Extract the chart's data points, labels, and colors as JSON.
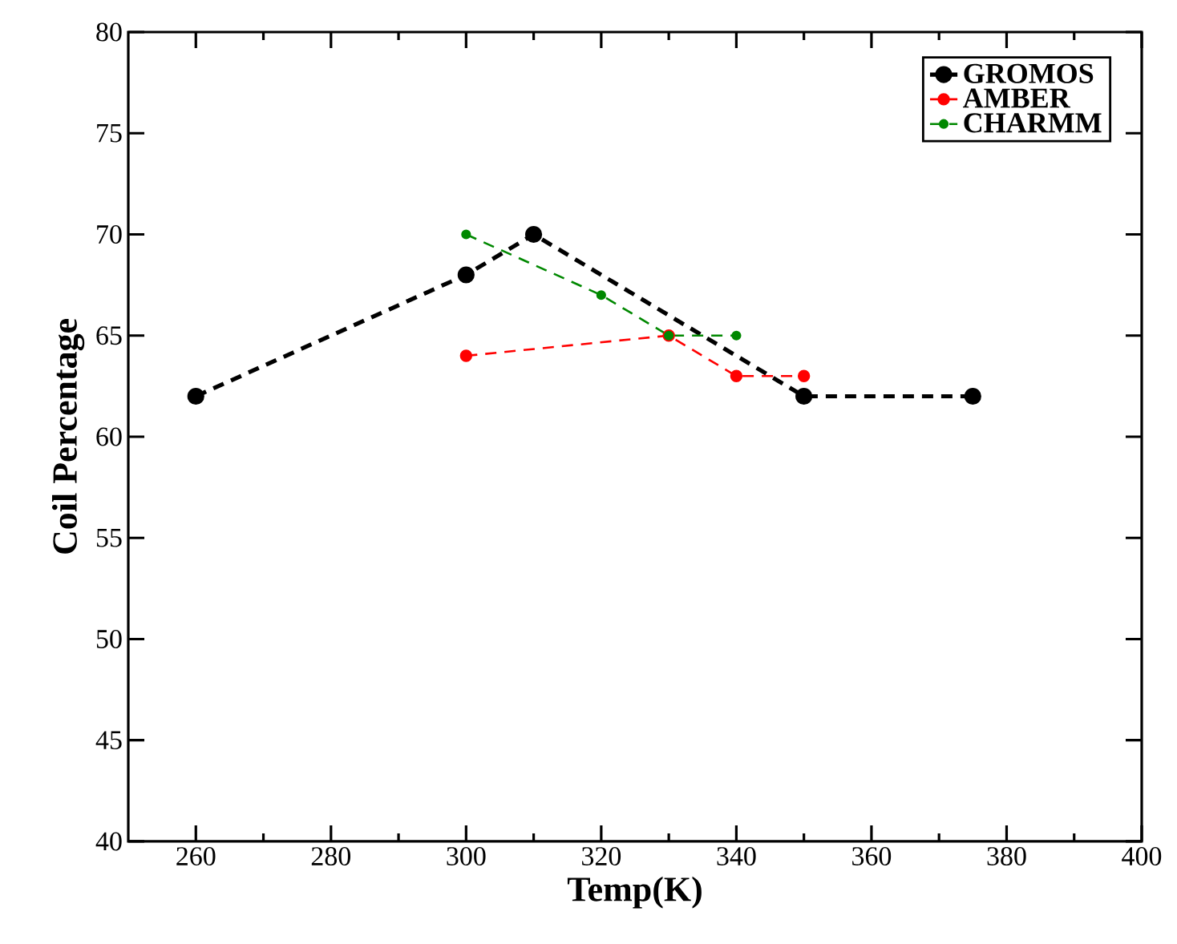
{
  "chart_data": {
    "type": "line",
    "xlabel": "Temp(K)",
    "ylabel": "Coil Percentage",
    "xlim": [
      250,
      400
    ],
    "xticks": [
      260,
      280,
      300,
      320,
      340,
      360,
      380,
      400
    ],
    "ylim": [
      40,
      80
    ],
    "yticks": [
      40,
      45,
      50,
      55,
      60,
      65,
      70,
      75,
      80
    ],
    "grid": false,
    "legend": "top right",
    "marker": "circle",
    "line_style": "dashed",
    "series": [
      {
        "name": "GROMOS",
        "color": "#000000",
        "x": [
          260,
          300,
          310,
          350,
          375
        ],
        "values": [
          62,
          68,
          70,
          62,
          62
        ]
      },
      {
        "name": "AMBER",
        "color": "#ff0000",
        "x": [
          300,
          330,
          340,
          350
        ],
        "values": [
          64,
          65,
          63,
          63
        ]
      },
      {
        "name": "CHARMM",
        "color": "#008800",
        "x": [
          300,
          320,
          330,
          340
        ],
        "values": [
          70,
          67,
          65,
          65
        ]
      }
    ]
  }
}
